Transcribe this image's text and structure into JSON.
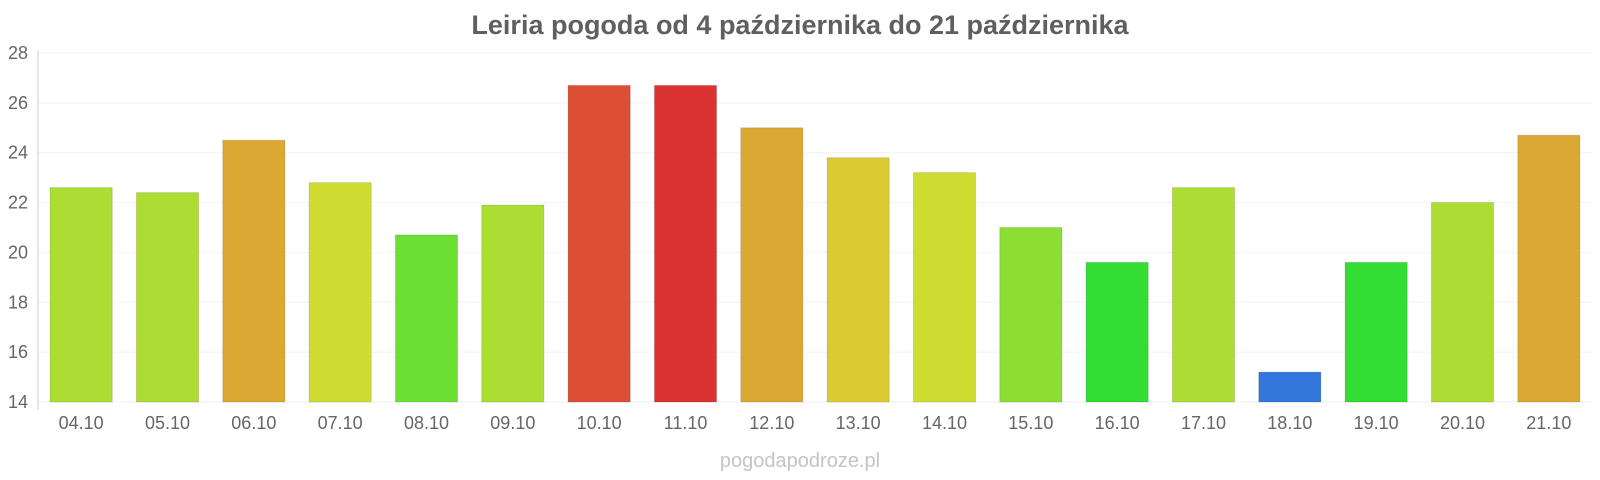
{
  "chart_data": {
    "type": "bar",
    "title": "Leiria pogoda od 4 października do 21 października",
    "xlabel": "",
    "ylabel": "",
    "ylim": [
      14,
      28
    ],
    "yticks": [
      14,
      16,
      18,
      20,
      22,
      24,
      26,
      28
    ],
    "grid": true,
    "legend": "none",
    "categories": [
      "04.10",
      "05.10",
      "06.10",
      "07.10",
      "08.10",
      "09.10",
      "10.10",
      "11.10",
      "12.10",
      "13.10",
      "14.10",
      "15.10",
      "16.10",
      "17.10",
      "18.10",
      "19.10",
      "20.10",
      "21.10"
    ],
    "values": [
      22.6,
      22.4,
      24.5,
      22.8,
      20.7,
      21.9,
      26.7,
      26.7,
      25.0,
      23.8,
      23.2,
      21.0,
      19.6,
      22.6,
      15.2,
      19.6,
      22.0,
      24.7
    ],
    "colors": [
      "#abdd33",
      "#abdd33",
      "#dca834",
      "#cfdd33",
      "#6ddf33",
      "#abdd33",
      "#dd4f34",
      "#db3333",
      "#dca834",
      "#dbca33",
      "#cfdd33",
      "#8cde33",
      "#33dd33",
      "#abdd33",
      "#3377dd",
      "#33dd33",
      "#abdd33",
      "#dca834"
    ]
  },
  "watermark": "pogodapodroze.pl"
}
